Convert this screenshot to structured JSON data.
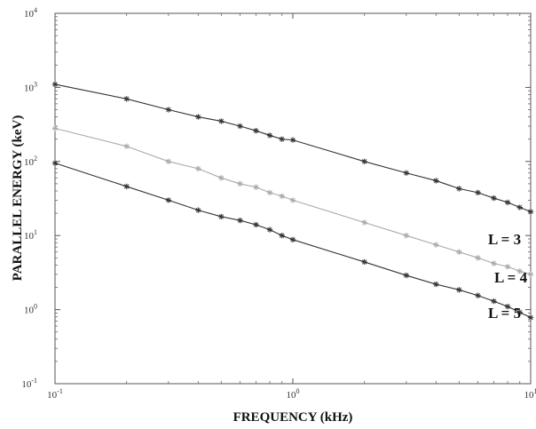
{
  "chart_data": {
    "type": "line",
    "xlabel": "FREQUENCY (kHz)",
    "ylabel": "PARALLEL ENERGY (keV)",
    "x_scale": "log",
    "y_scale": "log",
    "xlim": [
      0.1,
      10
    ],
    "ylim": [
      0.1,
      10000
    ],
    "x_ticks": [
      {
        "value": 0.1,
        "base": "10",
        "exp": "-1"
      },
      {
        "value": 1,
        "base": "10",
        "exp": "0"
      },
      {
        "value": 10,
        "base": "10",
        "exp": "1"
      }
    ],
    "y_ticks": [
      {
        "value": 0.1,
        "base": "10",
        "exp": "-1"
      },
      {
        "value": 1,
        "base": "10",
        "exp": "0"
      },
      {
        "value": 10,
        "base": "10",
        "exp": "1"
      },
      {
        "value": 100,
        "base": "10",
        "exp": "2"
      },
      {
        "value": 1000,
        "base": "10",
        "exp": "3"
      },
      {
        "value": 10000,
        "base": "10",
        "exp": "4"
      }
    ],
    "grid": false,
    "legend": "none",
    "series": [
      {
        "name": "L = 3",
        "color": "#333333",
        "x": [
          0.1,
          0.2,
          0.3,
          0.4,
          0.5,
          0.6,
          0.7,
          0.8,
          0.9,
          1,
          2,
          3,
          4,
          5,
          6,
          7,
          8,
          9,
          10
        ],
        "y": [
          1100,
          700,
          500,
          400,
          350,
          300,
          260,
          225,
          200,
          195,
          100,
          70,
          55,
          43,
          38,
          32,
          28,
          24,
          21
        ]
      },
      {
        "name": "L = 4",
        "color": "#aaaaaa",
        "x": [
          0.1,
          0.2,
          0.3,
          0.4,
          0.5,
          0.6,
          0.7,
          0.8,
          0.9,
          1,
          2,
          3,
          4,
          5,
          6,
          7,
          8,
          9,
          10
        ],
        "y": [
          280,
          160,
          100,
          80,
          60,
          50,
          45,
          38,
          34,
          30,
          15,
          10,
          7.5,
          6,
          5,
          4.2,
          3.8,
          3.3,
          3
        ]
      },
      {
        "name": "L = 5",
        "color": "#333333",
        "x": [
          0.1,
          0.2,
          0.3,
          0.4,
          0.5,
          0.6,
          0.7,
          0.8,
          0.9,
          1,
          2,
          3,
          4,
          5,
          6,
          7,
          8,
          9,
          10
        ],
        "y": [
          95,
          46,
          30,
          22,
          18,
          16,
          14,
          12,
          10,
          8.8,
          4.4,
          2.9,
          2.2,
          1.85,
          1.55,
          1.3,
          1.1,
          0.92,
          0.78
        ]
      }
    ]
  }
}
